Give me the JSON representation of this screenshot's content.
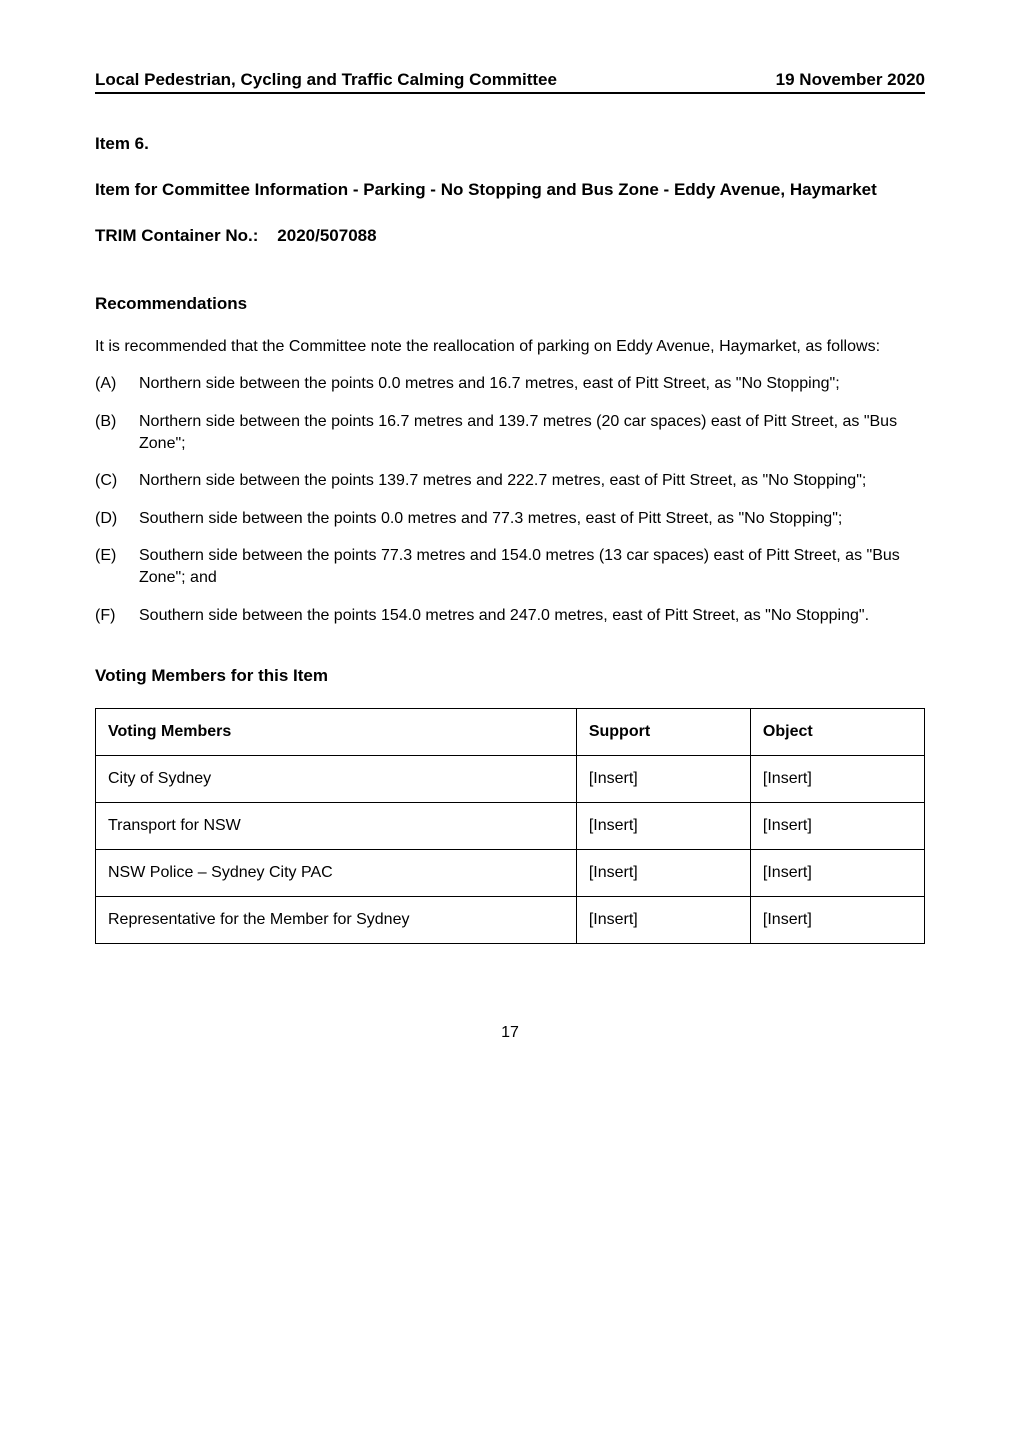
{
  "header": {
    "left": "Local Pedestrian, Cycling and Traffic Calming Committee",
    "right": "19 November 2020"
  },
  "item_number": "Item 6.",
  "item_title": "Item for Committee Information - Parking - No Stopping and Bus Zone - Eddy Avenue, Haymarket",
  "trim_label": "TRIM Container No.:",
  "trim_value": "2020/507088",
  "recommendations_heading": "Recommendations",
  "recommendations_intro": "It is recommended that the Committee note the reallocation of parking on Eddy Avenue, Haymarket, as follows:",
  "recommendations": [
    {
      "label": "(A)",
      "text": "Northern side between the points 0.0 metres and 16.7 metres, east of Pitt Street, as \"No Stopping\";"
    },
    {
      "label": "(B)",
      "text": "Northern side between the points 16.7 metres and 139.7 metres (20 car spaces) east of Pitt Street, as \"Bus Zone\";"
    },
    {
      "label": "(C)",
      "text": "Northern side between the points 139.7 metres and 222.7 metres, east of Pitt Street, as \"No Stopping\";"
    },
    {
      "label": "(D)",
      "text": "Southern side between the points 0.0 metres and 77.3 metres, east of Pitt Street, as \"No Stopping\";"
    },
    {
      "label": "(E)",
      "text": "Southern side between the points 77.3 metres and 154.0 metres (13 car spaces) east of Pitt Street, as \"Bus Zone\"; and"
    },
    {
      "label": "(F)",
      "text": "Southern side between the points 154.0 metres and 247.0 metres, east of Pitt Street, as \"No Stopping\"."
    }
  ],
  "voting_heading": "Voting Members for this Item",
  "voting_table": {
    "columns": [
      "Voting Members",
      "Support",
      "Object"
    ],
    "rows": [
      [
        "City of Sydney",
        "[Insert]",
        "[Insert]"
      ],
      [
        "Transport for NSW",
        "[Insert]",
        "[Insert]"
      ],
      [
        "NSW Police – Sydney City PAC",
        "[Insert]",
        "[Insert]"
      ],
      [
        "Representative for the Member for Sydney",
        "[Insert]",
        "[Insert]"
      ]
    ]
  },
  "page_number": "17"
}
